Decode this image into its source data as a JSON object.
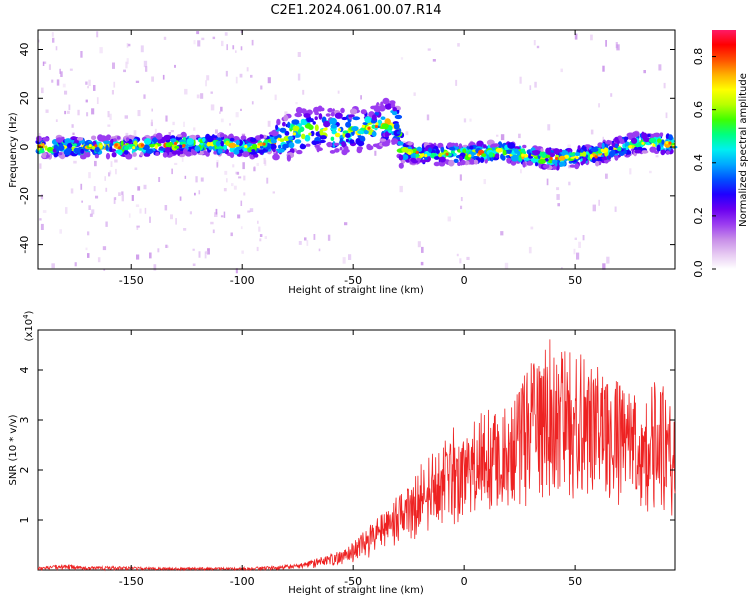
{
  "title": "C2E1.2024.061.00.07.R14",
  "colors": {
    "snr_line": "#ee2222",
    "colormap": [
      "#ffffff",
      "#e6c8f2",
      "#c78ce8",
      "#9b3cf0",
      "#6a00f0",
      "#1f00ff",
      "#0050ff",
      "#00a8ff",
      "#00f0f0",
      "#00ff80",
      "#40ff00",
      "#b8ff00",
      "#ffff00",
      "#ffb000",
      "#ff5000",
      "#ff0000",
      "#ff1a66"
    ]
  },
  "chart_data": [
    {
      "type": "heatmap",
      "xlabel": "Height of straight line (km)",
      "ylabel": "Frequency (Hz)",
      "xlim": [
        -192,
        95
      ],
      "ylim": [
        -50,
        48
      ],
      "xticks": [
        -150,
        -100,
        -50,
        0,
        50
      ],
      "yticks": [
        -40,
        -20,
        0,
        20,
        40
      ],
      "colorbar": {
        "label": "Normalized spectral amplitude",
        "range": [
          0.0,
          0.9
        ],
        "ticks": [
          0.0,
          0.2,
          0.4,
          0.6,
          0.8
        ],
        "tick_labels": [
          "0.0",
          "0.2",
          "0.4",
          "0.6",
          "0.8"
        ]
      },
      "description_points": {
        "ridge_center_hz": [
          [
            -192,
            0
          ],
          [
            -170,
            0
          ],
          [
            -150,
            0
          ],
          [
            -130,
            1
          ],
          [
            -110,
            1
          ],
          [
            -95,
            0
          ],
          [
            -85,
            2
          ],
          [
            -75,
            6
          ],
          [
            -65,
            7
          ],
          [
            -55,
            6
          ],
          [
            -45,
            8
          ],
          [
            -35,
            10
          ],
          [
            -30,
            9
          ],
          [
            -28,
            -2
          ],
          [
            -20,
            -3
          ],
          [
            -10,
            -3
          ],
          [
            0,
            -3
          ],
          [
            10,
            -2
          ],
          [
            20,
            -2
          ],
          [
            30,
            -4
          ],
          [
            40,
            -5
          ],
          [
            50,
            -4
          ],
          [
            60,
            -3
          ],
          [
            70,
            0
          ],
          [
            80,
            2
          ],
          [
            95,
            1
          ]
        ]
      }
    },
    {
      "type": "line",
      "xlabel": "Height of straight line (km)",
      "ylabel": "SNR (10 * v/v)",
      "y_multiplier": "(x10^4)",
      "xlim": [
        -192,
        95
      ],
      "ylim": [
        0,
        4.8
      ],
      "xticks": [
        -150,
        -100,
        -50,
        0,
        50
      ],
      "yticks": [
        1,
        2,
        3,
        4
      ],
      "envelope": {
        "x": [
          -192,
          -180,
          -170,
          -160,
          -140,
          -120,
          -100,
          -85,
          -75,
          -65,
          -55,
          -50,
          -45,
          -40,
          -35,
          -30,
          -25,
          -20,
          -15,
          -10,
          -5,
          0,
          5,
          10,
          15,
          20,
          25,
          30,
          35,
          40,
          45,
          50,
          55,
          60,
          65,
          70,
          75,
          80,
          85,
          90,
          95
        ],
        "low": [
          0,
          0,
          0,
          0,
          0,
          0,
          0,
          0,
          0.02,
          0.05,
          0.1,
          0.15,
          0.2,
          0.3,
          0.4,
          0.5,
          0.55,
          0.65,
          0.75,
          0.85,
          0.9,
          1.0,
          1.05,
          1.1,
          1.15,
          1.2,
          1.25,
          1.3,
          1.3,
          1.3,
          1.35,
          1.3,
          1.25,
          1.25,
          1.2,
          1.2,
          1.2,
          1.2,
          1.1,
          1.05,
          1.0
        ],
        "high": [
          0.06,
          0.12,
          0.06,
          0.08,
          0.05,
          0.05,
          0.05,
          0.08,
          0.12,
          0.25,
          0.4,
          0.55,
          0.8,
          1.0,
          1.2,
          1.5,
          1.7,
          2.2,
          2.3,
          2.5,
          2.9,
          2.9,
          3.1,
          3.3,
          3.3,
          3.4,
          3.7,
          4.2,
          4.4,
          4.7,
          4.5,
          4.3,
          4.4,
          4.1,
          3.9,
          3.9,
          3.6,
          3.4,
          3.8,
          3.7,
          3.0
        ]
      }
    }
  ]
}
